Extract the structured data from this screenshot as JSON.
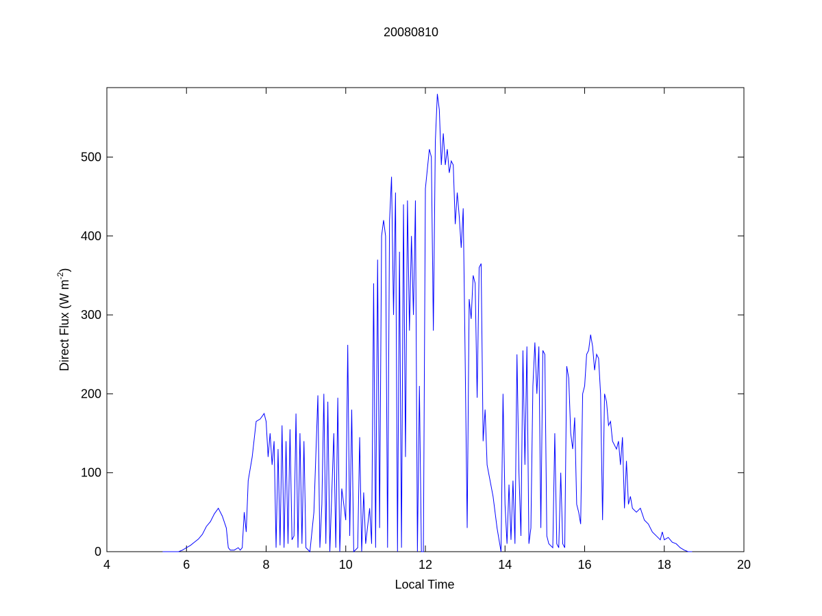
{
  "chart_data": {
    "type": "line",
    "title": "20080810",
    "x_label": "Local Time",
    "y_label": [
      "Direct Flux (W m",
      "-2",
      ")"
    ],
    "color": "#0000ff",
    "xlim": [
      4,
      20
    ],
    "xticks": [
      4,
      6,
      8,
      10,
      12,
      14,
      16,
      18,
      20
    ],
    "ylim": [
      0,
      588
    ],
    "yticks": [
      0,
      100,
      200,
      300,
      400,
      500
    ],
    "grid": false,
    "x": [
      5.4,
      5.8,
      5.9,
      6.0,
      6.1,
      6.2,
      6.3,
      6.4,
      6.5,
      6.6,
      6.7,
      6.8,
      6.9,
      7.0,
      7.05,
      7.1,
      7.2,
      7.3,
      7.35,
      7.4,
      7.45,
      7.5,
      7.55,
      7.65,
      7.75,
      7.85,
      7.95,
      8.0,
      8.05,
      8.1,
      8.15,
      8.2,
      8.25,
      8.3,
      8.35,
      8.4,
      8.45,
      8.5,
      8.55,
      8.6,
      8.65,
      8.7,
      8.75,
      8.8,
      8.85,
      8.9,
      8.95,
      9.0,
      9.1,
      9.2,
      9.3,
      9.35,
      9.4,
      9.45,
      9.5,
      9.55,
      9.6,
      9.7,
      9.75,
      9.8,
      9.85,
      9.9,
      10.0,
      10.05,
      10.1,
      10.15,
      10.2,
      10.3,
      10.35,
      10.4,
      10.45,
      10.5,
      10.6,
      10.65,
      10.7,
      10.75,
      10.8,
      10.85,
      10.9,
      10.95,
      11.0,
      11.05,
      11.1,
      11.15,
      11.2,
      11.25,
      11.3,
      11.35,
      11.4,
      11.45,
      11.5,
      11.55,
      11.6,
      11.65,
      11.7,
      11.75,
      11.8,
      11.85,
      11.9,
      11.95,
      12.0,
      12.1,
      12.15,
      12.2,
      12.25,
      12.3,
      12.35,
      12.4,
      12.45,
      12.5,
      12.55,
      12.6,
      12.65,
      12.7,
      12.75,
      12.8,
      12.85,
      12.9,
      12.95,
      13.0,
      13.05,
      13.1,
      13.15,
      13.2,
      13.25,
      13.3,
      13.35,
      13.4,
      13.45,
      13.5,
      13.55,
      13.7,
      13.8,
      13.9,
      13.95,
      14.0,
      14.05,
      14.1,
      14.15,
      14.2,
      14.25,
      14.3,
      14.35,
      14.4,
      14.45,
      14.5,
      14.55,
      14.6,
      14.65,
      14.7,
      14.75,
      14.8,
      14.85,
      14.9,
      14.95,
      15.0,
      15.05,
      15.1,
      15.2,
      15.25,
      15.3,
      15.35,
      15.4,
      15.45,
      15.5,
      15.55,
      15.6,
      15.65,
      15.7,
      15.75,
      15.8,
      15.85,
      15.9,
      15.95,
      16.0,
      16.05,
      16.1,
      16.15,
      16.2,
      16.25,
      16.3,
      16.35,
      16.4,
      16.45,
      16.5,
      16.55,
      16.6,
      16.65,
      16.7,
      16.8,
      16.85,
      16.9,
      16.95,
      17.0,
      17.05,
      17.1,
      17.15,
      17.2,
      17.3,
      17.4,
      17.5,
      17.6,
      17.7,
      17.8,
      17.9,
      17.95,
      18.0,
      18.1,
      18.2,
      18.3,
      18.4,
      18.5,
      18.6,
      18.7
    ],
    "values": [
      0,
      0,
      2,
      5,
      8,
      12,
      16,
      22,
      32,
      38,
      48,
      55,
      45,
      30,
      5,
      2,
      2,
      5,
      2,
      5,
      50,
      25,
      90,
      120,
      165,
      168,
      175,
      165,
      120,
      150,
      110,
      140,
      5,
      130,
      8,
      160,
      5,
      140,
      10,
      155,
      15,
      20,
      175,
      5,
      150,
      10,
      140,
      5,
      0,
      50,
      198,
      5,
      60,
      200,
      10,
      190,
      0,
      150,
      5,
      195,
      0,
      80,
      40,
      262,
      20,
      180,
      0,
      5,
      145,
      0,
      75,
      10,
      55,
      10,
      340,
      5,
      370,
      30,
      400,
      420,
      400,
      5,
      420,
      475,
      300,
      455,
      0,
      380,
      5,
      440,
      120,
      445,
      280,
      400,
      300,
      445,
      0,
      210,
      0,
      0,
      460,
      510,
      500,
      280,
      520,
      580,
      560,
      490,
      530,
      490,
      510,
      480,
      495,
      490,
      415,
      455,
      425,
      385,
      435,
      240,
      30,
      320,
      295,
      350,
      340,
      195,
      360,
      365,
      140,
      180,
      110,
      70,
      30,
      0,
      200,
      60,
      10,
      85,
      15,
      90,
      10,
      250,
      100,
      20,
      255,
      110,
      260,
      10,
      30,
      210,
      265,
      200,
      260,
      30,
      255,
      250,
      20,
      10,
      5,
      150,
      10,
      5,
      100,
      10,
      5,
      235,
      220,
      150,
      130,
      170,
      60,
      50,
      35,
      200,
      210,
      250,
      255,
      275,
      260,
      230,
      250,
      245,
      200,
      40,
      200,
      190,
      160,
      165,
      140,
      130,
      140,
      110,
      145,
      55,
      115,
      60,
      70,
      55,
      50,
      55,
      40,
      35,
      25,
      20,
      15,
      25,
      15,
      18,
      12,
      10,
      5,
      2,
      0,
      0
    ]
  }
}
